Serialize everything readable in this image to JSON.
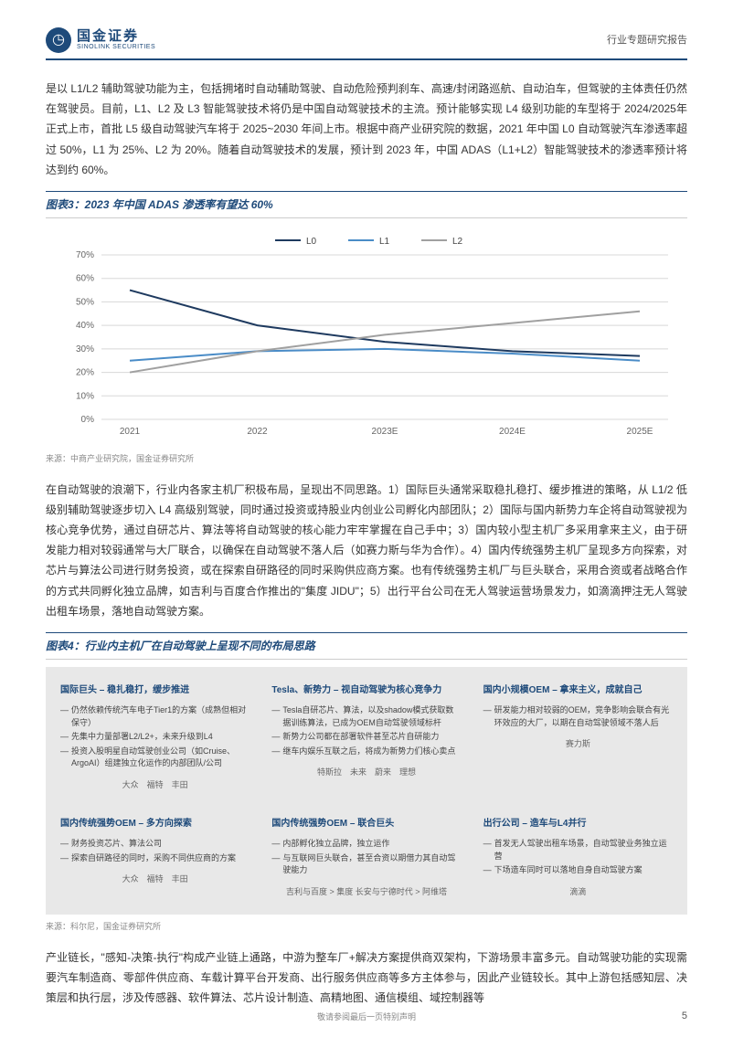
{
  "header": {
    "logo_cn": "国金证券",
    "logo_en": "SINOLINK SECURITIES",
    "report_type": "行业专题研究报告",
    "logo_glyph": "◷"
  },
  "para1": "是以 L1/L2 辅助驾驶功能为主，包括拥堵时自动辅助驾驶、自动危险预判刹车、高速/封闭路巡航、自动泊车，但驾驶的主体责任仍然在驾驶员。目前，L1、L2 及 L3 智能驾驶技术将仍是中国自动驾驶技术的主流。预计能够实现 L4 级别功能的车型将于 2024/2025年正式上市，首批 L5 级自动驾驶汽车将于 2025~2030 年间上市。根据中商产业研究院的数据，2021 年中国 L0 自动驾驶汽车渗透率超过 50%，L1 为 25%、L2 为 20%。随着自动驾驶技术的发展，预计到 2023 年，中国 ADAS（L1+L2）智能驾驶技术的渗透率预计将达到约 60%。",
  "chart3": {
    "title": "图表3：2023 年中国 ADAS 渗透率有望达 60%",
    "type": "line",
    "categories": [
      "2021",
      "2022",
      "2023E",
      "2024E",
      "2025E"
    ],
    "series": [
      {
        "name": "L0",
        "color": "#1e3a5f",
        "values": [
          55,
          40,
          33,
          29,
          27
        ]
      },
      {
        "name": "L1",
        "color": "#4a8cc7",
        "values": [
          25,
          29,
          30,
          28,
          25
        ]
      },
      {
        "name": "L2",
        "color": "#a0a0a0",
        "values": [
          20,
          29,
          36,
          41,
          46
        ]
      }
    ],
    "ylim": [
      0,
      70
    ],
    "ytick_step": 10,
    "y_format": "%",
    "grid_color": "#d8d8d8",
    "axis_color": "#888",
    "line_width": 2,
    "font_size": 10,
    "bg": "#ffffff",
    "source": "来源：中商产业研究院，国金证券研究所"
  },
  "para2": "在自动驾驶的浪潮下，行业内各家主机厂积极布局，呈现出不同思路。1）国际巨头通常采取稳扎稳打、缓步推进的策略，从 L1/2 低级别辅助驾驶逐步切入 L4 高级别驾驶，同时通过投资或持股业内创业公司孵化内部团队；2）国际与国内新势力车企将自动驾驶视为核心竞争优势，通过自研芯片、算法等将自动驾驶的核心能力牢牢掌握在自己手中；3）国内较小型主机厂多采用拿来主义，由于研发能力相对较弱通常与大厂联合，以确保在自动驾驶不落人后（如赛力斯与华为合作）。4）国内传统强势主机厂呈现多方向探索，对芯片与算法公司进行财务投资，或在探索自研路径的同时采购供应商方案。也有传统强势主机厂与巨头联合，采用合资或者战略合作的方式共同孵化独立品牌，如吉利与百度合作推出的\"集度 JIDU\"；5）出行平台公司在无人驾驶运营场景发力，如滴滴押注无人驾驶出租车场景，落地自动驾驶方案。",
  "chart4": {
    "title": "图表4：行业内主机厂在自动驾驶上呈现不同的布局思路",
    "bg": "#e8e8e8",
    "title_color": "#1e4a7a",
    "text_color": "#444",
    "brand_color": "#666",
    "cells": [
      {
        "title": "国际巨头 – 稳扎稳打，缓步推进",
        "items": [
          "仍然依赖传统汽车电子Tier1的方案（成熟但相对保守）",
          "先集中力量部署L2/L2+，未来升级到L4",
          "投资入股明星自动驾驶创业公司（如Cruise、ArgoAI）组建独立化运作的内部团队/公司"
        ],
        "brands": "大众　福特　丰田"
      },
      {
        "title": "Tesla、新势力 – 视自动驾驶为核心竞争力",
        "items": [
          "Tesla自研芯片、算法，以及shadow模式获取数据训练算法，已成为OEM自动驾驶领域标杆",
          "新势力公司都在部署软件甚至芯片自研能力",
          "继车内娱乐互联之后，将成为新势力们核心卖点"
        ],
        "brands": "特斯拉　未来　蔚来　理想"
      },
      {
        "title": "国内小规模OEM – 拿来主义，成就自己",
        "items": [
          "研发能力相对较弱的OEM，竞争影响会联合有光环效应的大厂，以期在自动驾驶领域不落人后"
        ],
        "brands": "赛力斯"
      },
      {
        "title": "国内传统强势OEM – 多方向探索",
        "items": [
          "财务投资芯片、算法公司",
          "探索自研路径的同时，采购不同供应商的方案"
        ],
        "brands": "大众　福特　丰田"
      },
      {
        "title": "国内传统强势OEM – 联合巨头",
        "items": [
          "内部孵化独立品牌，独立运作",
          "与互联网巨头联合，甚至合资以期借力其自动驾驶能力"
        ],
        "brands": "吉利与百度 > 集度\n长安与宁德时代 > 阿维塔"
      },
      {
        "title": "出行公司 – 造车与L4并行",
        "items": [
          "首发无人驾驶出租车场景，自动驾驶业务独立运营",
          "下场造车同时可以落地自身自动驾驶方案"
        ],
        "brands": "滴滴"
      }
    ],
    "source": "来源：科尔尼，国金证券研究所"
  },
  "para3": "产业链长，\"感知-决策-执行\"构成产业链上通路，中游为整车厂+解决方案提供商双架构，下游场景丰富多元。自动驾驶功能的实现需要汽车制造商、零部件供应商、车载计算平台开发商、出行服务供应商等多方主体参与，因此产业链较长。其中上游包括感知层、决策层和执行层，涉及传感器、软件算法、芯片设计制造、高精地图、通信模组、域控制器等",
  "footer": {
    "disclaimer": "敬请参阅最后一页特别声明",
    "page": "5"
  }
}
